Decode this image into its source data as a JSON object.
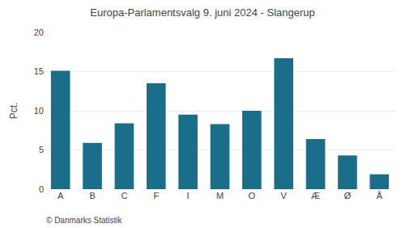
{
  "chart_data": {
    "type": "bar",
    "title": "Europa-Parlamentsvalg 9. juni 2024 - Slangerup",
    "ylabel": "Pct.",
    "annotations": [
      "© Danmarks Statistik"
    ],
    "categories": [
      "A",
      "B",
      "C",
      "F",
      "I",
      "M",
      "O",
      "V",
      "Æ",
      "Ø",
      "Å"
    ],
    "values": [
      15.1,
      5.9,
      8.4,
      13.5,
      9.5,
      8.3,
      10.0,
      16.7,
      6.4,
      4.3,
      1.9
    ],
    "color": "#1a6e8a",
    "ylim": [
      0,
      20
    ],
    "yticks": [
      0,
      5,
      10,
      15,
      20
    ],
    "grid": true
  }
}
